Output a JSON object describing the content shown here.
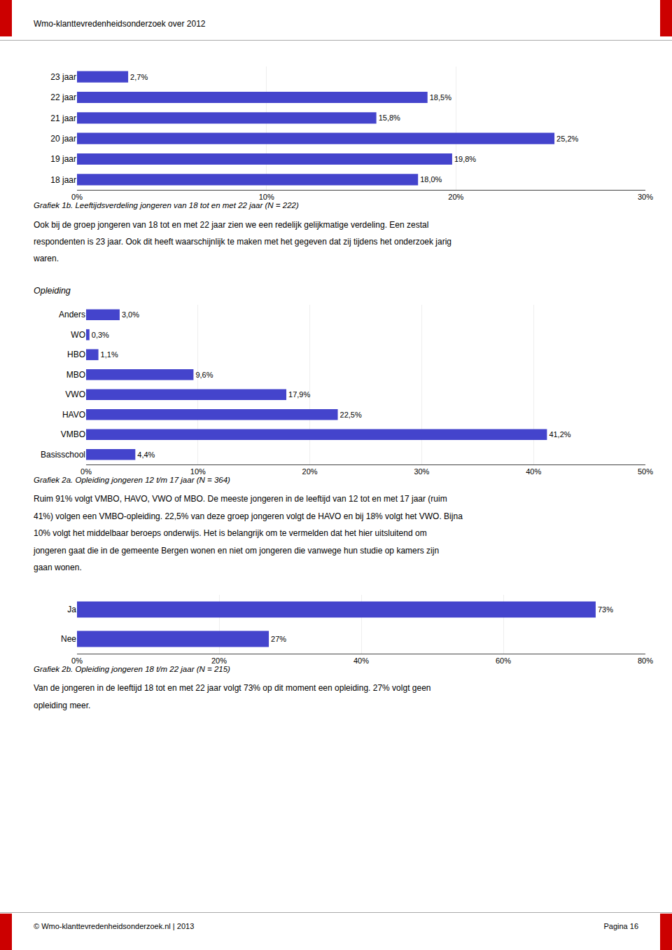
{
  "page_header": "Wmo-klanttevredenheidsonderzoek over 2012",
  "page_footer_left": "© Wmo-klanttevredenheidsonderzoek.nl | 2013",
  "page_footer_right": "Pagina 16",
  "text1_lines": [
    "Ook bij de groep jongeren van 18 tot en met 22 jaar zien we een redelijk gelijkmatige verdeling. Een zestal",
    "respondenten is 23 jaar. Ook dit heeft waarschijnlijk te maken met het gegeven dat zij tijdens het onderzoek jarig",
    "waren."
  ],
  "section_header": "Opleiding",
  "text2_lines": [
    "Ruim 91% volgt VMBO, HAVO, VWO of MBO. De meeste jongeren in de leeftijd van 12 tot en met 17 jaar (ruim",
    "41%) volgen een VMBO-opleiding. 22,5% van deze groep jongeren volgt de HAVO en bij 18% volgt het VWO. Bijna",
    "10% volgt het middelbaar beroeps onderwijs. Het is belangrijk om te vermelden dat het hier uitsluitend om",
    "jongeren gaat die in de gemeente Bergen wonen en niet om jongeren die vanwege hun studie op kamers zijn",
    "gaan wonen."
  ],
  "text3_lines": [
    "Van de jongeren in de leeftijd 18 tot en met 22 jaar volgt 73% op dit moment een opleiding. 27% volgt geen",
    "opleiding meer."
  ],
  "chart_data": [
    {
      "type": "bar",
      "orientation": "horizontal",
      "title": "Grafiek 1b. Leeftijdsverdeling jongeren van 18 tot en met 22 jaar (N = 222)",
      "categories": [
        "18 jaar",
        "19 jaar",
        "20 jaar",
        "21 jaar",
        "22 jaar",
        "23 jaar"
      ],
      "values": [
        18.0,
        19.8,
        25.2,
        15.8,
        18.5,
        2.7
      ],
      "value_labels": [
        "18,0%",
        "19,8%",
        "25,2%",
        "15,8%",
        "18,5%",
        "2,7%"
      ],
      "data_labels": true,
      "color": "#4444CC",
      "xlim": [
        0,
        30
      ],
      "xticks": [
        {
          "value": 0,
          "label": "0%"
        },
        {
          "value": 10,
          "label": "10%"
        },
        {
          "value": 20,
          "label": "20%"
        },
        {
          "value": 30,
          "label": "30%"
        }
      ],
      "grid": true
    },
    {
      "type": "bar",
      "orientation": "horizontal",
      "title": "Grafiek 2a. Opleiding jongeren 12 t/m 17 jaar (N = 364)",
      "categories": [
        "Basisschool",
        "VMBO",
        "HAVO",
        "VWO",
        "MBO",
        "HBO",
        "WO",
        "Anders"
      ],
      "values": [
        4.4,
        41.2,
        22.5,
        17.9,
        9.6,
        1.1,
        0.3,
        3.0
      ],
      "value_labels": [
        "4,4%",
        "41,2%",
        "22,5%",
        "17,9%",
        "9,6%",
        "1,1%",
        "0,3%",
        "3,0%"
      ],
      "data_labels": true,
      "color": "#4444CC",
      "xlim": [
        0,
        50
      ],
      "xticks": [
        {
          "value": 0,
          "label": "0%"
        },
        {
          "value": 10,
          "label": "10%"
        },
        {
          "value": 20,
          "label": "20%"
        },
        {
          "value": 30,
          "label": "30%"
        },
        {
          "value": 40,
          "label": "40%"
        },
        {
          "value": 50,
          "label": "50%"
        }
      ],
      "grid": true
    },
    {
      "type": "bar",
      "orientation": "horizontal",
      "title": "Grafiek 2b. Opleiding jongeren 18 t/m 22 jaar (N = 215)",
      "categories": [
        "Nee",
        "Ja"
      ],
      "values": [
        27,
        73
      ],
      "value_labels": [
        "27%",
        "73%"
      ],
      "data_labels": true,
      "color": "#4444CC",
      "xlim": [
        0,
        80
      ],
      "xticks": [
        {
          "value": 0,
          "label": "0%"
        },
        {
          "value": 20,
          "label": "20%"
        },
        {
          "value": 40,
          "label": "40%"
        },
        {
          "value": 60,
          "label": "60%"
        },
        {
          "value": 80,
          "label": "80%"
        }
      ],
      "grid": true
    }
  ]
}
